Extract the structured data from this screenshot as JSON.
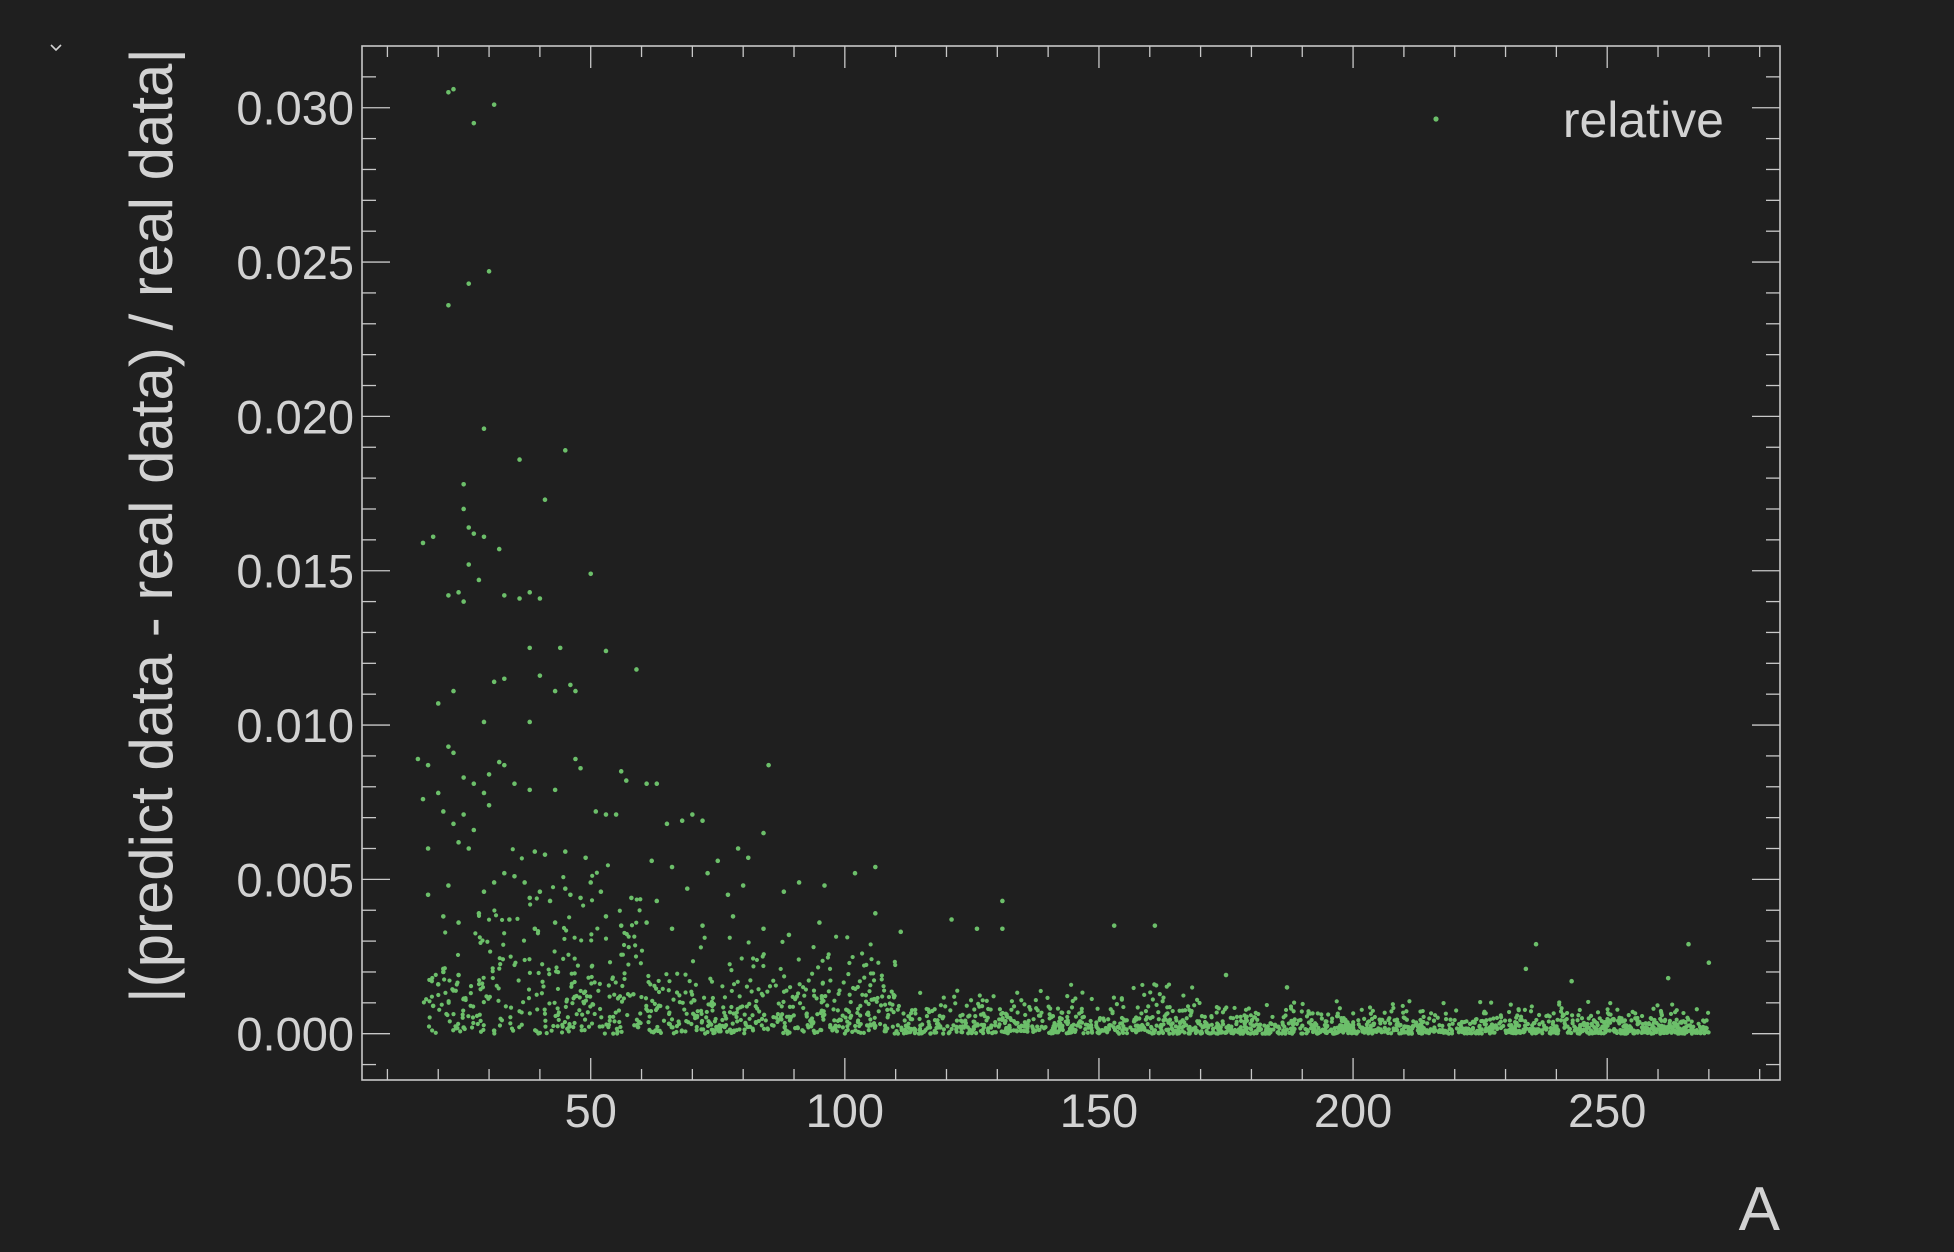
{
  "colors": {
    "background": "#1f1f1f",
    "axis": "#c8c8c8",
    "text": "#d2d2d2",
    "marker": "#6cbf6a"
  },
  "icons": {
    "toggle": "chevron-down-icon"
  },
  "chart_data": {
    "type": "scatter",
    "xlabel": "A",
    "ylabel": "|(predict data - real data) / real data|",
    "xlim": [
      5,
      284
    ],
    "ylim": [
      -0.0015,
      0.032
    ],
    "xticks": [
      50,
      100,
      150,
      200,
      250
    ],
    "yticks": [
      "0.000",
      "0.005",
      "0.010",
      "0.015",
      "0.020",
      "0.025",
      "0.030"
    ],
    "grid": false,
    "legend": {
      "position": "top-right",
      "entries": [
        "relative"
      ]
    },
    "series": [
      {
        "name": "relative",
        "marker": "dot",
        "color": "#6cbf6a",
        "points": [
          [
            22,
            0.0305
          ],
          [
            23,
            0.0306
          ],
          [
            27,
            0.0295
          ],
          [
            31,
            0.0301
          ],
          [
            22,
            0.0236
          ],
          [
            26,
            0.0243
          ],
          [
            30,
            0.0247
          ],
          [
            29,
            0.0196
          ],
          [
            36,
            0.0186
          ],
          [
            45,
            0.0189
          ],
          [
            25,
            0.0178
          ],
          [
            41,
            0.0173
          ],
          [
            25,
            0.017
          ],
          [
            17,
            0.0159
          ],
          [
            19,
            0.0161
          ],
          [
            26,
            0.0164
          ],
          [
            27,
            0.0162
          ],
          [
            32,
            0.0157
          ],
          [
            29,
            0.0161
          ],
          [
            26,
            0.0152
          ],
          [
            50,
            0.0149
          ],
          [
            22,
            0.0142
          ],
          [
            24,
            0.0143
          ],
          [
            25,
            0.014
          ],
          [
            33,
            0.0142
          ],
          [
            36,
            0.0141
          ],
          [
            38,
            0.0143
          ],
          [
            40,
            0.0141
          ],
          [
            28,
            0.0147
          ],
          [
            38,
            0.0125
          ],
          [
            44,
            0.0125
          ],
          [
            53,
            0.0124
          ],
          [
            59,
            0.0118
          ],
          [
            31,
            0.0114
          ],
          [
            33,
            0.0115
          ],
          [
            40,
            0.0116
          ],
          [
            43,
            0.0111
          ],
          [
            46,
            0.0113
          ],
          [
            47,
            0.0111
          ],
          [
            23,
            0.0111
          ],
          [
            20,
            0.0107
          ],
          [
            29,
            0.0101
          ],
          [
            38,
            0.0101
          ],
          [
            22,
            0.0093
          ],
          [
            16,
            0.0089
          ],
          [
            18,
            0.0087
          ],
          [
            23,
            0.0091
          ],
          [
            30,
            0.0084
          ],
          [
            32,
            0.0088
          ],
          [
            33,
            0.0087
          ],
          [
            47,
            0.0089
          ],
          [
            48,
            0.0086
          ],
          [
            85,
            0.0087
          ],
          [
            56,
            0.0085
          ],
          [
            57,
            0.0082
          ],
          [
            61,
            0.0081
          ],
          [
            63,
            0.0081
          ],
          [
            17,
            0.0076
          ],
          [
            20,
            0.0078
          ],
          [
            25,
            0.0083
          ],
          [
            27,
            0.0081
          ],
          [
            29,
            0.0078
          ],
          [
            35,
            0.0081
          ],
          [
            38,
            0.0079
          ],
          [
            43,
            0.0079
          ],
          [
            21,
            0.0072
          ],
          [
            23,
            0.0068
          ],
          [
            25,
            0.0071
          ],
          [
            27,
            0.0066
          ],
          [
            30,
            0.0074
          ],
          [
            51,
            0.0072
          ],
          [
            53,
            0.0071
          ],
          [
            55,
            0.0071
          ],
          [
            65,
            0.0068
          ],
          [
            68,
            0.0069
          ],
          [
            70,
            0.0071
          ],
          [
            72,
            0.0069
          ],
          [
            84,
            0.0065
          ],
          [
            18,
            0.006
          ],
          [
            24,
            0.0062
          ],
          [
            26,
            0.006
          ],
          [
            39,
            0.0059
          ],
          [
            41,
            0.0058
          ],
          [
            45,
            0.0059
          ],
          [
            49,
            0.0057
          ],
          [
            62,
            0.0056
          ],
          [
            66,
            0.0054
          ],
          [
            75,
            0.0056
          ],
          [
            79,
            0.006
          ],
          [
            81,
            0.0057
          ],
          [
            106,
            0.0054
          ],
          [
            102,
            0.0052
          ],
          [
            18,
            0.0045
          ],
          [
            22,
            0.0048
          ],
          [
            29,
            0.0046
          ],
          [
            31,
            0.0049
          ],
          [
            33,
            0.0052
          ],
          [
            35,
            0.0051
          ],
          [
            37,
            0.0049
          ],
          [
            38,
            0.0044
          ],
          [
            40,
            0.0046
          ],
          [
            42,
            0.0043
          ],
          [
            45,
            0.0047
          ],
          [
            46,
            0.0045
          ],
          [
            48,
            0.0044
          ],
          [
            50,
            0.0049
          ],
          [
            52,
            0.0046
          ],
          [
            58,
            0.0044
          ],
          [
            63,
            0.0043
          ],
          [
            69,
            0.0047
          ],
          [
            73,
            0.0052
          ],
          [
            77,
            0.0045
          ],
          [
            80,
            0.0048
          ],
          [
            88,
            0.0046
          ],
          [
            91,
            0.0049
          ],
          [
            96,
            0.0048
          ],
          [
            131,
            0.0043
          ],
          [
            21,
            0.0038
          ],
          [
            24,
            0.0036
          ],
          [
            28,
            0.0039
          ],
          [
            34,
            0.0037
          ],
          [
            39,
            0.0034
          ],
          [
            43,
            0.0036
          ],
          [
            53,
            0.0038
          ],
          [
            56,
            0.0035
          ],
          [
            61,
            0.0036
          ],
          [
            66,
            0.0034
          ],
          [
            72,
            0.0035
          ],
          [
            78,
            0.0038
          ],
          [
            84,
            0.0034
          ],
          [
            89,
            0.0032
          ],
          [
            95,
            0.0036
          ],
          [
            106,
            0.0039
          ],
          [
            111,
            0.0033
          ],
          [
            121,
            0.0037
          ],
          [
            126,
            0.0034
          ],
          [
            131,
            0.0034
          ],
          [
            153,
            0.0035
          ],
          [
            161,
            0.0035
          ],
          [
            175,
            0.0019
          ],
          [
            187,
            0.0015
          ],
          [
            236,
            0.0029
          ],
          [
            243,
            0.0017
          ],
          [
            266,
            0.0029
          ],
          [
            270,
            0.0023
          ],
          [
            262,
            0.0018
          ],
          [
            234,
            0.0021
          ],
          [
            20,
            0.0016
          ],
          [
            21,
            0.002
          ],
          [
            23,
            0.0014
          ],
          [
            19,
            0.0009
          ],
          [
            25,
            0.0002
          ],
          [
            31,
            0.0001
          ],
          [
            21,
            0.0021
          ],
          [
            24,
            0.0019
          ]
        ]
      }
    ]
  }
}
